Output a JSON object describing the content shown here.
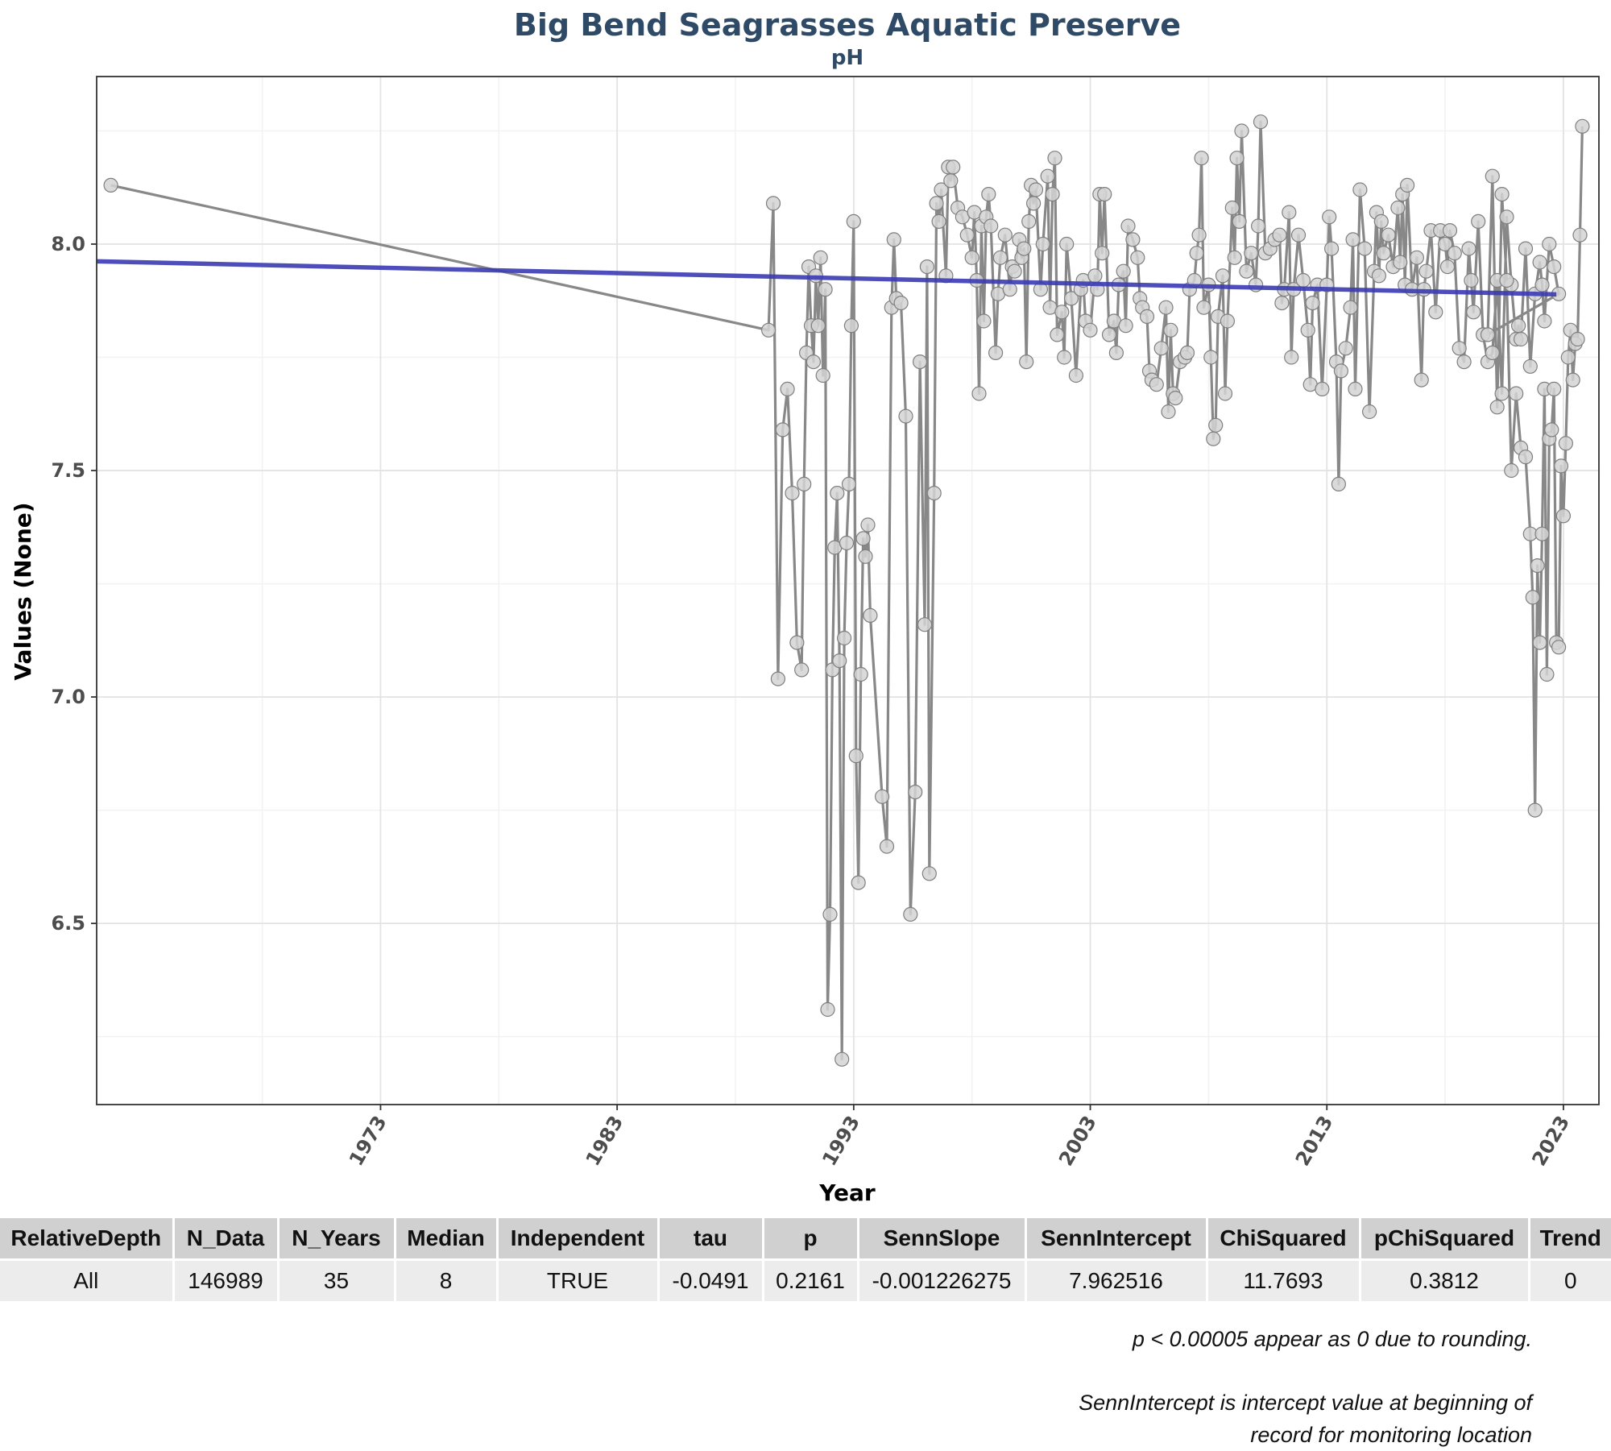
{
  "chart_data": {
    "type": "line",
    "title": "Big Bend Seagrasses Aquatic Preserve",
    "subtitle": "pH",
    "xlabel": "Year",
    "ylabel": "Values (None)",
    "xlim": [
      1961,
      2024.5
    ],
    "ylim": [
      6.1,
      8.37
    ],
    "x_ticks": [
      1973,
      1983,
      1993,
      2003,
      2013,
      2023
    ],
    "y_ticks": [
      6.5,
      7.0,
      7.5,
      8.0
    ],
    "grid": true,
    "colors": {
      "observations": "#888888",
      "point_fill": "#d3d3d3",
      "point_edge": "#7f7f7f",
      "trend": "#3b3bb3",
      "title": "#2e4a66"
    },
    "trend_line": {
      "x": [
        1961,
        2022.7
      ],
      "y": [
        7.962,
        7.889
      ]
    },
    "series": [
      {
        "values": [
          [
            1961.6,
            8.13
          ],
          [
            1989.4,
            7.81
          ],
          [
            1989.6,
            8.09
          ],
          [
            1989.8,
            7.04
          ],
          [
            1990.0,
            7.59
          ],
          [
            1990.2,
            7.68
          ],
          [
            1990.4,
            7.45
          ],
          [
            1990.6,
            7.12
          ],
          [
            1990.8,
            7.06
          ],
          [
            1990.9,
            7.47
          ],
          [
            1991.0,
            7.76
          ],
          [
            1991.1,
            7.95
          ],
          [
            1991.2,
            7.82
          ],
          [
            1991.3,
            7.74
          ],
          [
            1991.4,
            7.93
          ],
          [
            1991.5,
            7.82
          ],
          [
            1991.6,
            7.97
          ],
          [
            1991.7,
            7.71
          ],
          [
            1991.8,
            7.9
          ],
          [
            1991.9,
            6.31
          ],
          [
            1992.0,
            6.52
          ],
          [
            1992.1,
            7.06
          ],
          [
            1992.2,
            7.33
          ],
          [
            1992.3,
            7.45
          ],
          [
            1992.4,
            7.08
          ],
          [
            1992.5,
            6.2
          ],
          [
            1992.6,
            7.13
          ],
          [
            1992.7,
            7.34
          ],
          [
            1992.8,
            7.47
          ],
          [
            1992.9,
            7.82
          ],
          [
            1993.0,
            8.05
          ],
          [
            1993.1,
            6.87
          ],
          [
            1993.2,
            6.59
          ],
          [
            1993.3,
            7.05
          ],
          [
            1993.4,
            7.35
          ],
          [
            1993.5,
            7.31
          ],
          [
            1993.6,
            7.38
          ],
          [
            1993.7,
            7.18
          ],
          [
            1994.2,
            6.78
          ],
          [
            1994.4,
            6.67
          ],
          [
            1994.6,
            7.86
          ],
          [
            1994.7,
            8.01
          ],
          [
            1994.8,
            7.88
          ],
          [
            1995.0,
            7.87
          ],
          [
            1995.2,
            7.62
          ],
          [
            1995.4,
            6.52
          ],
          [
            1995.6,
            6.79
          ],
          [
            1995.8,
            7.74
          ],
          [
            1996.0,
            7.16
          ],
          [
            1996.1,
            7.95
          ],
          [
            1996.2,
            6.61
          ],
          [
            1996.4,
            7.45
          ],
          [
            1996.5,
            8.09
          ],
          [
            1996.6,
            8.05
          ],
          [
            1996.7,
            8.12
          ],
          [
            1996.9,
            7.93
          ],
          [
            1997.0,
            8.17
          ],
          [
            1997.1,
            8.14
          ],
          [
            1997.2,
            8.17
          ],
          [
            1997.4,
            8.08
          ],
          [
            1997.6,
            8.06
          ],
          [
            1997.8,
            8.02
          ],
          [
            1998.0,
            7.97
          ],
          [
            1998.1,
            8.07
          ],
          [
            1998.2,
            7.92
          ],
          [
            1998.3,
            7.67
          ],
          [
            1998.4,
            8.04
          ],
          [
            1998.5,
            7.83
          ],
          [
            1998.6,
            8.06
          ],
          [
            1998.7,
            8.11
          ],
          [
            1998.8,
            8.04
          ],
          [
            1999.0,
            7.76
          ],
          [
            1999.1,
            7.89
          ],
          [
            1999.2,
            7.97
          ],
          [
            1999.4,
            8.02
          ],
          [
            1999.6,
            7.9
          ],
          [
            1999.7,
            7.95
          ],
          [
            1999.8,
            7.94
          ],
          [
            2000.0,
            8.01
          ],
          [
            2000.1,
            7.97
          ],
          [
            2000.2,
            7.99
          ],
          [
            2000.3,
            7.74
          ],
          [
            2000.4,
            8.05
          ],
          [
            2000.5,
            8.13
          ],
          [
            2000.6,
            8.09
          ],
          [
            2000.7,
            8.12
          ],
          [
            2000.9,
            7.9
          ],
          [
            2001.0,
            8.0
          ],
          [
            2001.2,
            8.15
          ],
          [
            2001.3,
            7.86
          ],
          [
            2001.4,
            8.11
          ],
          [
            2001.5,
            8.19
          ],
          [
            2001.6,
            7.8
          ],
          [
            2001.8,
            7.85
          ],
          [
            2001.9,
            7.75
          ],
          [
            2002.0,
            8.0
          ],
          [
            2002.2,
            7.88
          ],
          [
            2002.4,
            7.71
          ],
          [
            2002.6,
            7.9
          ],
          [
            2002.7,
            7.92
          ],
          [
            2002.8,
            7.83
          ],
          [
            2003.0,
            7.81
          ],
          [
            2003.2,
            7.93
          ],
          [
            2003.3,
            7.9
          ],
          [
            2003.4,
            8.11
          ],
          [
            2003.5,
            7.98
          ],
          [
            2003.6,
            8.11
          ],
          [
            2003.8,
            7.8
          ],
          [
            2004.0,
            7.83
          ],
          [
            2004.1,
            7.76
          ],
          [
            2004.2,
            7.91
          ],
          [
            2004.4,
            7.94
          ],
          [
            2004.5,
            7.82
          ],
          [
            2004.6,
            8.04
          ],
          [
            2004.8,
            8.01
          ],
          [
            2005.0,
            7.97
          ],
          [
            2005.1,
            7.88
          ],
          [
            2005.2,
            7.86
          ],
          [
            2005.4,
            7.84
          ],
          [
            2005.5,
            7.72
          ],
          [
            2005.6,
            7.7
          ],
          [
            2005.8,
            7.69
          ],
          [
            2006.0,
            7.77
          ],
          [
            2006.2,
            7.86
          ],
          [
            2006.3,
            7.63
          ],
          [
            2006.4,
            7.81
          ],
          [
            2006.5,
            7.67
          ],
          [
            2006.6,
            7.66
          ],
          [
            2006.8,
            7.74
          ],
          [
            2007.0,
            7.75
          ],
          [
            2007.1,
            7.76
          ],
          [
            2007.2,
            7.9
          ],
          [
            2007.4,
            7.92
          ],
          [
            2007.5,
            7.98
          ],
          [
            2007.6,
            8.02
          ],
          [
            2007.7,
            8.19
          ],
          [
            2007.8,
            7.86
          ],
          [
            2008.0,
            7.91
          ],
          [
            2008.1,
            7.75
          ],
          [
            2008.2,
            7.57
          ],
          [
            2008.3,
            7.6
          ],
          [
            2008.4,
            7.84
          ],
          [
            2008.6,
            7.93
          ],
          [
            2008.7,
            7.67
          ],
          [
            2008.8,
            7.83
          ],
          [
            2009.0,
            8.08
          ],
          [
            2009.1,
            7.97
          ],
          [
            2009.2,
            8.19
          ],
          [
            2009.3,
            8.05
          ],
          [
            2009.4,
            8.25
          ],
          [
            2009.6,
            7.94
          ],
          [
            2009.8,
            7.98
          ],
          [
            2010.0,
            7.91
          ],
          [
            2010.1,
            8.04
          ],
          [
            2010.2,
            8.27
          ],
          [
            2010.4,
            7.98
          ],
          [
            2010.6,
            7.99
          ],
          [
            2010.8,
            8.01
          ],
          [
            2011.0,
            8.02
          ],
          [
            2011.1,
            7.87
          ],
          [
            2011.2,
            7.9
          ],
          [
            2011.4,
            8.07
          ],
          [
            2011.5,
            7.75
          ],
          [
            2011.6,
            7.9
          ],
          [
            2011.8,
            8.02
          ],
          [
            2012.0,
            7.92
          ],
          [
            2012.2,
            7.81
          ],
          [
            2012.3,
            7.69
          ],
          [
            2012.4,
            7.87
          ],
          [
            2012.6,
            7.91
          ],
          [
            2012.8,
            7.68
          ],
          [
            2013.0,
            7.91
          ],
          [
            2013.1,
            8.06
          ],
          [
            2013.2,
            7.99
          ],
          [
            2013.4,
            7.74
          ],
          [
            2013.5,
            7.47
          ],
          [
            2013.6,
            7.72
          ],
          [
            2013.8,
            7.77
          ],
          [
            2014.0,
            7.86
          ],
          [
            2014.1,
            8.01
          ],
          [
            2014.2,
            7.68
          ],
          [
            2014.4,
            8.12
          ],
          [
            2014.6,
            7.99
          ],
          [
            2014.8,
            7.63
          ],
          [
            2015.0,
            7.94
          ],
          [
            2015.1,
            8.07
          ],
          [
            2015.2,
            7.93
          ],
          [
            2015.3,
            8.05
          ],
          [
            2015.4,
            7.98
          ],
          [
            2015.6,
            8.02
          ],
          [
            2015.8,
            7.95
          ],
          [
            2016.0,
            8.08
          ],
          [
            2016.1,
            7.96
          ],
          [
            2016.2,
            8.11
          ],
          [
            2016.3,
            7.91
          ],
          [
            2016.4,
            8.13
          ],
          [
            2016.6,
            7.9
          ],
          [
            2016.8,
            7.97
          ],
          [
            2017.0,
            7.7
          ],
          [
            2017.1,
            7.9
          ],
          [
            2017.2,
            7.94
          ],
          [
            2017.4,
            8.03
          ],
          [
            2017.6,
            7.85
          ],
          [
            2017.8,
            8.03
          ],
          [
            2018.0,
            8.0
          ],
          [
            2018.1,
            7.95
          ],
          [
            2018.2,
            8.03
          ],
          [
            2018.4,
            7.98
          ],
          [
            2018.6,
            7.77
          ],
          [
            2018.8,
            7.74
          ],
          [
            2019.0,
            7.99
          ],
          [
            2019.1,
            7.92
          ],
          [
            2019.2,
            7.85
          ],
          [
            2019.4,
            8.05
          ],
          [
            2019.6,
            7.8
          ],
          [
            2019.8,
            7.74
          ],
          [
            2020.0,
            7.76
          ],
          [
            2020.2,
            7.92
          ],
          [
            2020.4,
            7.67
          ],
          [
            2020.6,
            8.06
          ],
          [
            2020.8,
            7.91
          ],
          [
            2021.0,
            7.79
          ],
          [
            2021.1,
            7.82
          ],
          [
            2021.2,
            7.79
          ],
          [
            2021.4,
            7.99
          ],
          [
            2021.6,
            7.73
          ],
          [
            2021.8,
            7.89
          ],
          [
            2022.0,
            7.96
          ],
          [
            2022.1,
            7.91
          ],
          [
            2022.2,
            7.83
          ],
          [
            2022.4,
            8.0
          ],
          [
            2022.6,
            7.95
          ],
          [
            2022.8,
            7.89
          ],
          [
            2019.8,
            7.8
          ],
          [
            2020.0,
            8.15
          ],
          [
            2020.2,
            7.64
          ],
          [
            2020.4,
            8.11
          ],
          [
            2020.6,
            7.92
          ],
          [
            2020.8,
            7.5
          ],
          [
            2021.0,
            7.67
          ],
          [
            2021.2,
            7.55
          ],
          [
            2021.4,
            7.53
          ],
          [
            2021.6,
            7.36
          ],
          [
            2021.7,
            7.22
          ],
          [
            2021.8,
            6.75
          ],
          [
            2021.9,
            7.29
          ],
          [
            2022.0,
            7.12
          ],
          [
            2022.1,
            7.36
          ],
          [
            2022.2,
            7.68
          ],
          [
            2022.3,
            7.05
          ],
          [
            2022.4,
            7.57
          ],
          [
            2022.5,
            7.59
          ],
          [
            2022.6,
            7.68
          ],
          [
            2022.7,
            7.12
          ],
          [
            2022.8,
            7.11
          ],
          [
            2022.9,
            7.51
          ],
          [
            2023.0,
            7.4
          ],
          [
            2023.1,
            7.56
          ],
          [
            2023.2,
            7.75
          ],
          [
            2023.3,
            7.81
          ],
          [
            2023.4,
            7.7
          ],
          [
            2023.5,
            7.78
          ],
          [
            2023.6,
            7.79
          ],
          [
            2023.7,
            8.02
          ],
          [
            2023.8,
            8.26
          ]
        ]
      }
    ]
  },
  "table": {
    "headers": [
      "RelativeDepth",
      "N_Data",
      "N_Years",
      "Median",
      "Independent",
      "tau",
      "p",
      "SennSlope",
      "SennIntercept",
      "ChiSquared",
      "pChiSquared",
      "Trend"
    ],
    "row": [
      "All",
      "146989",
      "35",
      "8",
      "TRUE",
      "-0.0491",
      "0.2161",
      "-0.001226275",
      "7.962516",
      "11.7693",
      "0.3812",
      "0"
    ]
  },
  "notes": {
    "line1": "p < 0.00005 appear as 0 due to rounding.",
    "line2a": "SennIntercept is intercept value at beginning of",
    "line2b": "record for monitoring location"
  }
}
